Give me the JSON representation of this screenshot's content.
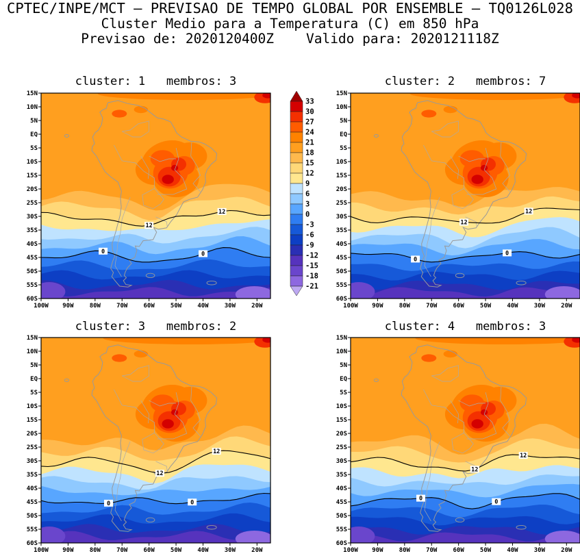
{
  "header": {
    "line1": "CPTEC/INPE/MCT — PREVISAO DE TEMPO GLOBAL POR ENSEMBLE — TQ0126L028",
    "line2": "Cluster Medio para a Temperatura (C) em 850 hPa",
    "line3": "Previsao de: 2020120400Z    Valido para: 2020121118Z"
  },
  "chart_data": {
    "type": "heatmap",
    "subtype": "filled_contour_map_grid",
    "title": "Cluster Medio para a Temperatura (C) em 850 hPa",
    "variable": "Temperatura",
    "units": "C",
    "level": "850 hPa",
    "forecast_init": "2020120400Z",
    "forecast_valid": "2020121118Z",
    "panels": [
      {
        "cluster": 1,
        "membros": 3,
        "title": "cluster: 1   membros: 3"
      },
      {
        "cluster": 2,
        "membros": 7,
        "title": "cluster: 2   membros: 7"
      },
      {
        "cluster": 3,
        "membros": 2,
        "title": "cluster: 3   membros: 2"
      },
      {
        "cluster": 4,
        "membros": 3,
        "title": "cluster: 4   membros: 3"
      }
    ],
    "colorbar": {
      "labels": [
        "33",
        "30",
        "27",
        "24",
        "21",
        "18",
        "15",
        "12",
        "9",
        "6",
        "3",
        "0",
        "-3",
        "-6",
        "-9",
        "-12",
        "-15",
        "-18",
        "-21"
      ],
      "colors": [
        "#a00000",
        "#d40000",
        "#f43000",
        "#ff5c00",
        "#ff8200",
        "#ff9f1f",
        "#ffb94d",
        "#ffd878",
        "#ffe78f",
        "#bfe3ff",
        "#8fc9ff",
        "#58a6ff",
        "#2f7df2",
        "#1659d8",
        "#0d3fc4",
        "#2a2fb4",
        "#5633bd",
        "#6a46cc",
        "#8d68e0",
        "#bda8f2"
      ]
    },
    "x_ticks": [
      "100W",
      "90W",
      "80W",
      "70W",
      "60W",
      "50W",
      "40W",
      "30W",
      "20W"
    ],
    "y_ticks": [
      "15N",
      "10N",
      "5N",
      "EQ",
      "5S",
      "10S",
      "15S",
      "20S",
      "25S",
      "30S",
      "35S",
      "40S",
      "45S",
      "50S",
      "55S",
      "60S"
    ],
    "contour_labels": [
      "12",
      "0"
    ]
  }
}
